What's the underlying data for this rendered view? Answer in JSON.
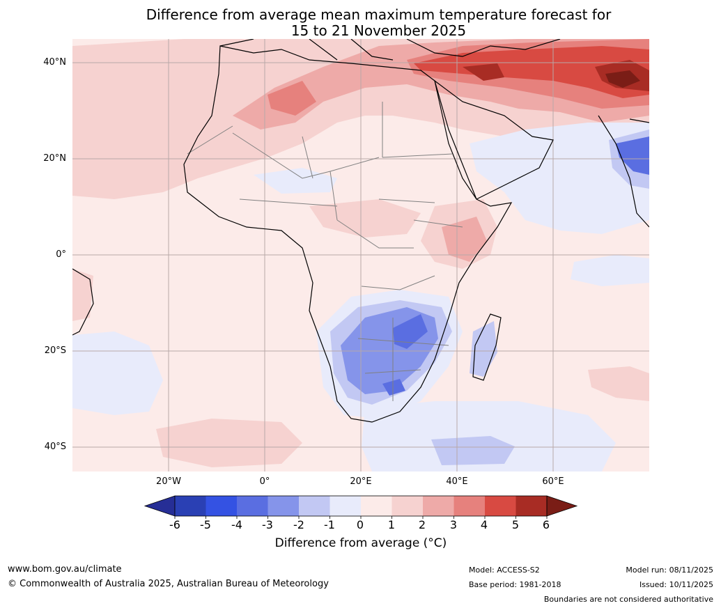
{
  "title": {
    "line1": "Difference from average mean maximum temperature forecast for",
    "line2": "15 to 21 November 2025"
  },
  "map": {
    "latitude_labels": [
      "40°N",
      "20°N",
      "0°",
      "20°S",
      "40°S"
    ],
    "longitude_labels": [
      "20°W",
      "0°",
      "20°E",
      "40°E",
      "60°E"
    ],
    "colors": {
      "ocean_base": "#fcebe9",
      "warm1": "#f6d2d0",
      "warm2": "#eeaaa8",
      "warm3": "#e6817d",
      "warm4": "#d84a42",
      "warm5": "#a82c24",
      "warm6": "#7a1d16",
      "cool1": "#e8ebfb",
      "cool2": "#c2c8f3",
      "cool3": "#8594ea",
      "cool4": "#5a6ee1",
      "coast": "#000000",
      "border": "#808080",
      "grid": "#b8a8a8"
    }
  },
  "colorbar": {
    "ticks": [
      "-6",
      "-5",
      "-4",
      "-3",
      "-2",
      "-1",
      "0",
      "1",
      "2",
      "3",
      "4",
      "5",
      "6"
    ],
    "colors": [
      "#262e96",
      "#2a40b4",
      "#3452e3",
      "#5a6ee1",
      "#8594ea",
      "#c2c8f3",
      "#e8ebfb",
      "#fcebe9",
      "#f6d2d0",
      "#eeaaa8",
      "#e6817d",
      "#d84a42",
      "#a82c24",
      "#7a1d16"
    ],
    "label": "Difference from average (°C)"
  },
  "footer": {
    "website": "www.bom.gov.au/climate",
    "copyright": "© Commonwealth of Australia 2025, Australian Bureau of Meteorology",
    "model": "Model: ACCESS-S2",
    "base_period": "Base period: 1981-2018",
    "model_run": "Model run: 08/11/2025",
    "issued": "Issued: 10/11/2025",
    "disclaimer": "Boundaries are not considered authoritative"
  }
}
